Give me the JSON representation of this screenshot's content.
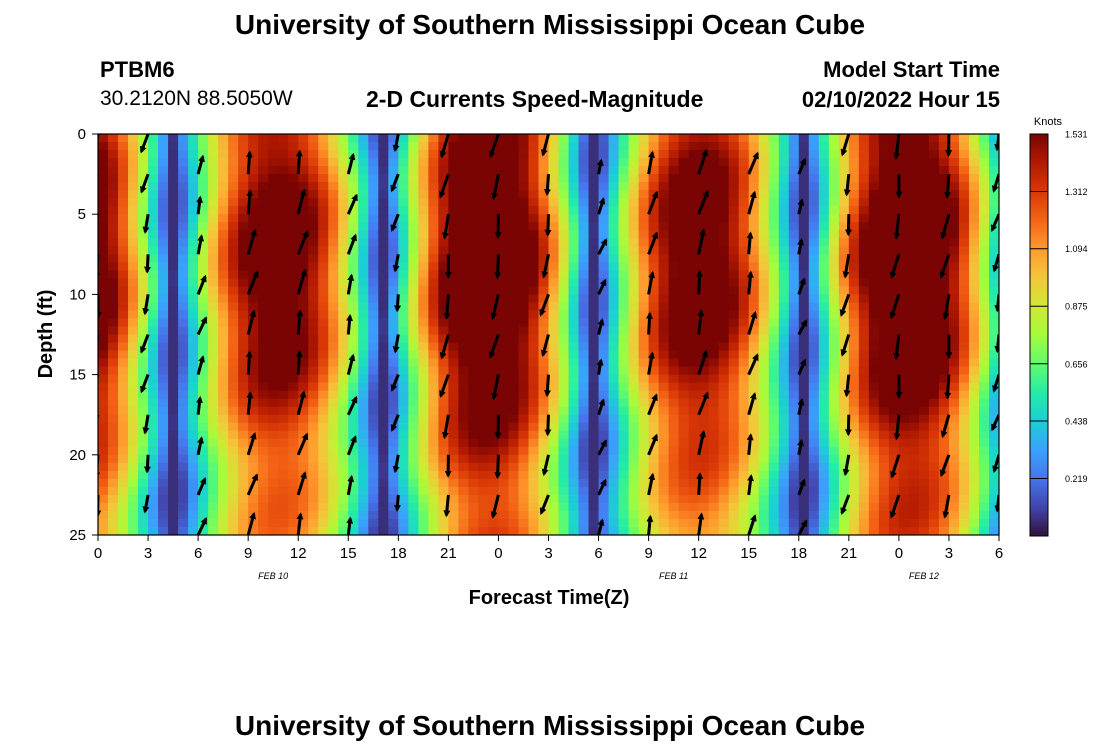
{
  "header": {
    "title": "University of Southern Mississippi Ocean Cube",
    "station": "PTBM6",
    "coords": "30.2120N  88.5050W",
    "subtitle": "2-D Currents Speed-Magnitude",
    "model_start_label": "Model Start Time",
    "model_start_value": "02/10/2022 Hour 15"
  },
  "footer": {
    "title": "University of Southern Mississippi Ocean Cube"
  },
  "chart_data": {
    "type": "heatmap",
    "xlabel": "Forecast Time(Z)",
    "ylabel": "Depth (ft)",
    "x_tick_labels": [
      "0",
      "3",
      "6",
      "9",
      "12",
      "15",
      "18",
      "21",
      "0",
      "3",
      "6",
      "9",
      "12",
      "15",
      "18",
      "21",
      "0",
      "3",
      "6"
    ],
    "date_labels": [
      {
        "label": "FEB 10",
        "tick_index": 3.5
      },
      {
        "label": "FEB 11",
        "tick_index": 11.5
      },
      {
        "label": "FEB 12",
        "tick_index": 16.5
      }
    ],
    "y_ticks": [
      0,
      5,
      10,
      15,
      20,
      25
    ],
    "ylim": [
      25,
      0
    ],
    "colorbar": {
      "unit": "Knots",
      "ticks": [
        "1.531",
        "1.312",
        "1.094",
        "0.875",
        "0.656",
        "0.438",
        "0.219"
      ],
      "range": [
        0,
        1.531
      ],
      "colors": [
        "#30123b",
        "#4145ab",
        "#4675ed",
        "#39a2fc",
        "#1bcfd4",
        "#24eca6",
        "#61fc6c",
        "#a4fc3b",
        "#d1e834",
        "#f3c63a",
        "#fe9b2d",
        "#f36315",
        "#d93806",
        "#b11901",
        "#7a0403"
      ]
    },
    "grid": false,
    "legend": "colorbar-right"
  }
}
